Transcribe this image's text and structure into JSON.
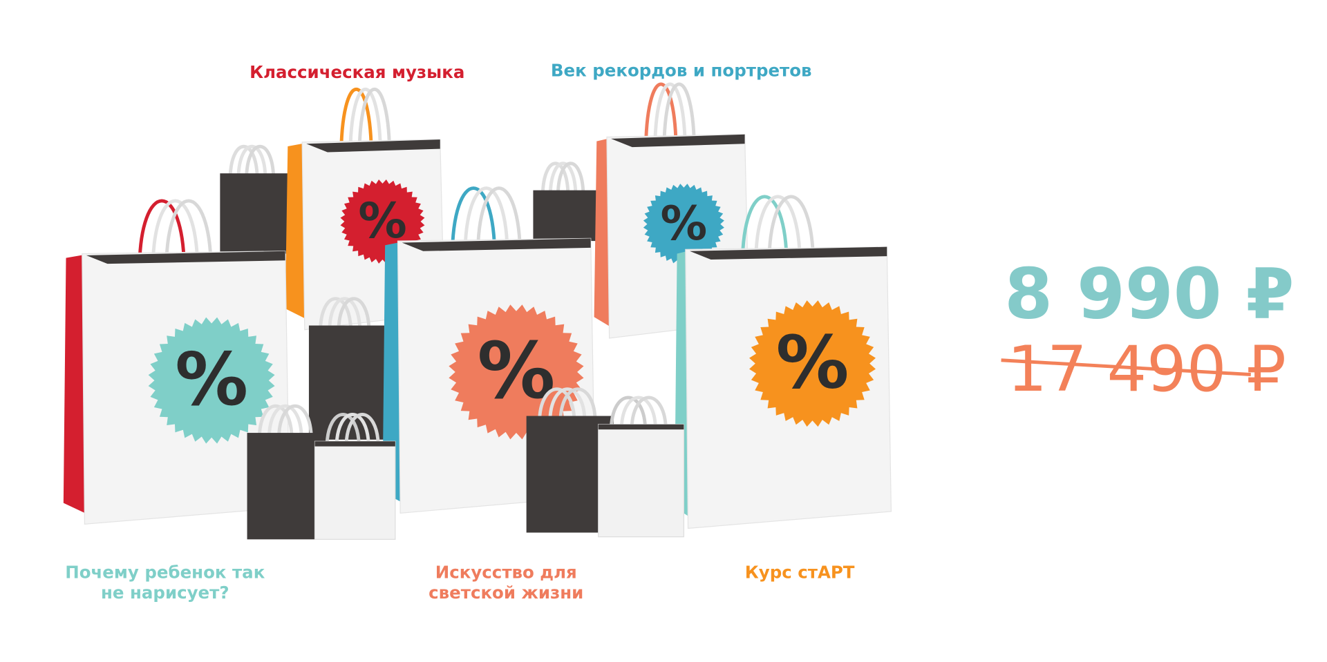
{
  "courses": [
    {
      "title": "Классическая музыка",
      "color": "#d41f2f"
    },
    {
      "title": "Век рекордов и портретов",
      "color": "#3ea8c4"
    },
    {
      "title_line1": "Почему ребенок так",
      "title_line2": "не нарисует?",
      "color": "#7fcfc8"
    },
    {
      "title_line1": "Искусство для",
      "title_line2": "светской жизни",
      "color": "#ef7c5d"
    },
    {
      "title": "Курс стАРТ",
      "color": "#f7921e"
    }
  ],
  "price": {
    "current": "8 990 ₽",
    "old": "17 490 ₽",
    "current_color": "#84cac9",
    "old_color": "#f38159"
  },
  "badge_icon": "percent-icon"
}
